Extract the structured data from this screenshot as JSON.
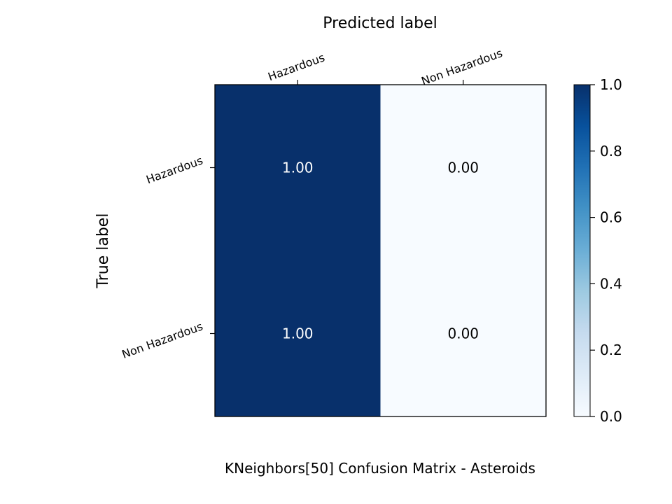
{
  "chart_data": {
    "type": "heatmap",
    "title": "Predicted label",
    "xlabel": "Predicted label",
    "ylabel": "True label",
    "caption": "KNeighbors[50]  Confusion Matrix - Asteroids",
    "x_categories": [
      "Hazardous",
      "Non Hazardous"
    ],
    "y_categories": [
      "Hazardous",
      "Non Hazardous"
    ],
    "values": [
      [
        1.0,
        0.0
      ],
      [
        1.0,
        0.0
      ]
    ],
    "cell_labels": [
      [
        "1.00",
        "0.00"
      ],
      [
        "1.00",
        "0.00"
      ]
    ],
    "colormap": "Blues",
    "colorbar": {
      "range": [
        0.0,
        1.0
      ],
      "ticks": [
        0.0,
        0.2,
        0.4,
        0.6,
        0.8,
        1.0
      ],
      "tick_labels": [
        "0.0",
        "0.2",
        "0.4",
        "0.6",
        "0.8",
        "1.0"
      ]
    },
    "grid": false,
    "colors": {
      "high": "#08306b",
      "low": "#f7fbff",
      "text_on_dark": "#ffffff",
      "text_on_light": "#000000"
    }
  }
}
